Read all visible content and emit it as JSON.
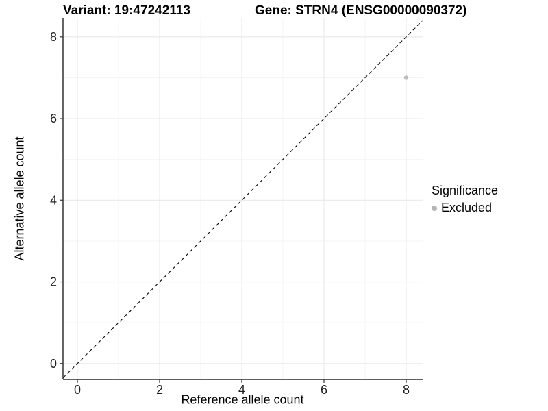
{
  "figure": {
    "title_left": "Variant: 19:47242113",
    "title_right": "Gene: STRN4 (ENSG00000090372)"
  },
  "chart_data": {
    "type": "scatter",
    "xlabel": "Reference allele count",
    "ylabel": "Alternative allele count",
    "xlim": [
      -0.35,
      8.4
    ],
    "ylim": [
      -0.39,
      8.45
    ],
    "x_major_ticks": [
      0,
      2,
      4,
      6,
      8
    ],
    "y_major_ticks": [
      0,
      2,
      4,
      6,
      8
    ],
    "x_minor_ticks": [
      1,
      3,
      5,
      7
    ],
    "y_minor_ticks": [
      1,
      3,
      5,
      7
    ],
    "grid": true,
    "reference_line": {
      "type": "identity",
      "style": "dashed",
      "color": "#000000"
    },
    "series": [
      {
        "name": "Excluded",
        "color": "#bcbcbc",
        "points": [
          {
            "x": 8,
            "y": 7
          }
        ]
      }
    ],
    "legend": {
      "position": "right",
      "title": "Significance",
      "items": [
        {
          "label": "Excluded",
          "color": "#b5b5b5"
        }
      ]
    },
    "colors": {
      "background": "#ffffff",
      "grid_major": "#e9e9e9",
      "grid_minor": "#f3f3f3",
      "axis_line": "#000000",
      "tick_mark": "#333333",
      "tick_label": "#1f1f1f"
    }
  }
}
